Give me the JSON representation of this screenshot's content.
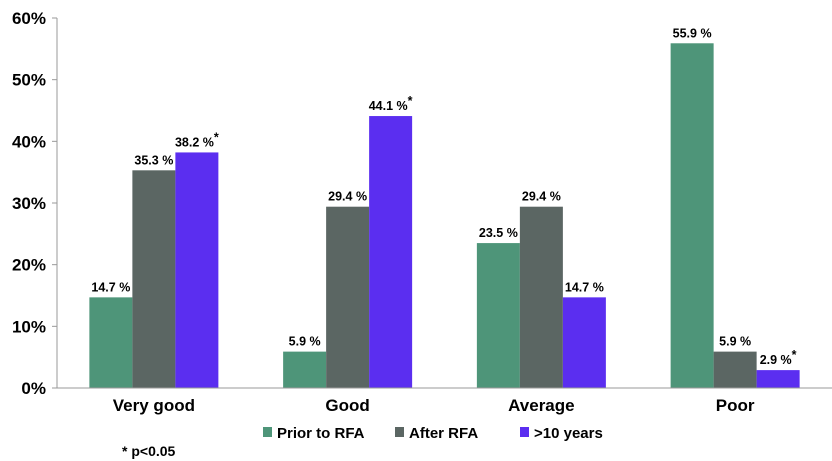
{
  "chart_data": {
    "type": "bar",
    "categories": [
      "Very good",
      "Good",
      "Average",
      "Poor"
    ],
    "series": [
      {
        "name": "Prior to RFA",
        "color": "#4e9579",
        "values": [
          14.7,
          5.9,
          23.5,
          55.9
        ],
        "labels": [
          "14.7 %",
          "5.9 %",
          "23.5 %",
          "55.9 %"
        ],
        "marks": [
          "",
          "",
          "",
          ""
        ]
      },
      {
        "name": "After RFA",
        "color": "#5b6663",
        "values": [
          35.3,
          29.4,
          29.4,
          5.9
        ],
        "labels": [
          "35.3 %",
          "29.4 %",
          "29.4 %",
          "5.9 %"
        ],
        "marks": [
          "",
          "",
          "",
          ""
        ]
      },
      {
        "name": ">10 years",
        "color": "#5b2ef0",
        "values": [
          38.2,
          44.1,
          14.7,
          2.9
        ],
        "labels": [
          "38.2 %",
          "44.1 %",
          "14.7 %",
          "2.9 %"
        ],
        "marks": [
          "*",
          "*",
          "",
          "*"
        ]
      }
    ],
    "yticks": [
      "0%",
      "10%",
      "20%",
      "30%",
      "40%",
      "50%",
      "60%"
    ],
    "ylim": [
      0,
      60
    ],
    "grid": false,
    "legend_position": "bottom",
    "footnote": "* p<0.05"
  }
}
